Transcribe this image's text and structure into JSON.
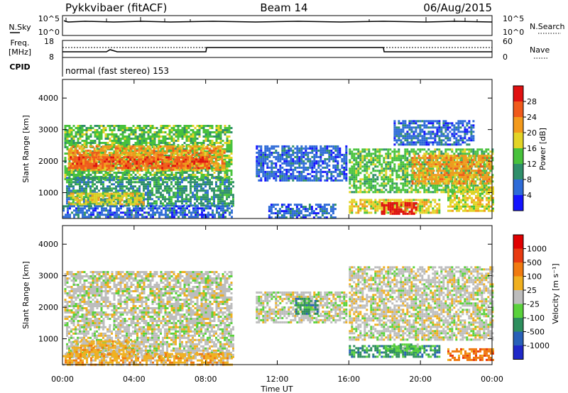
{
  "header": {
    "station": "Pykkvibaer (fitACF)",
    "beam": "Beam 14",
    "date": "06/Aug/2015"
  },
  "noise_panel": {
    "left_label": "N.Sky",
    "right_label": "N.Search",
    "left_ticks": [
      "10^5",
      "10^0"
    ],
    "right_ticks": [
      "10^5",
      "10^0"
    ]
  },
  "freq_panel": {
    "left_label_1": "Freq.",
    "left_label_2": "[MHz]",
    "right_label": "Nave",
    "left_ticks": [
      "18",
      "8"
    ],
    "right_ticks": [
      "60",
      "0"
    ]
  },
  "cpid": {
    "label": "CPID",
    "program": "normal (fast stereo) 153"
  },
  "chart_data": [
    {
      "type": "heatmap",
      "name": "power",
      "ylabel": "Slant Range [km]",
      "ylim": [
        180,
        4590
      ],
      "yticks": [
        1000,
        2000,
        3000,
        4000
      ],
      "xlim": [
        0,
        24
      ],
      "xtick_labels": [
        "00:00",
        "04:00",
        "08:00",
        "12:00",
        "16:00",
        "20:00",
        "00:00"
      ],
      "colorbar": {
        "label": "Power [dB]",
        "ticks": [
          "4",
          "8",
          "12",
          "16",
          "20",
          "24",
          "28"
        ],
        "colors": [
          "#1414ff",
          "#2e6bd8",
          "#2f8f6a",
          "#48c23c",
          "#e3d426",
          "#f39a1c",
          "#f05a1b",
          "#e01010"
        ]
      },
      "regions": [
        {
          "t0": 0.1,
          "t1": 9.5,
          "r0": 1450,
          "r1": 3150,
          "level": 3
        },
        {
          "t0": 0.3,
          "t1": 9.0,
          "r0": 1750,
          "r1": 2500,
          "level": 5
        },
        {
          "t0": 0.4,
          "t1": 8.2,
          "r0": 1800,
          "r1": 2150,
          "level": 6
        },
        {
          "t0": 0.2,
          "t1": 9.5,
          "r0": 600,
          "r1": 1500,
          "level": 2
        },
        {
          "t0": 0.3,
          "t1": 4.5,
          "r0": 650,
          "r1": 1000,
          "level": 4
        },
        {
          "t0": 0.0,
          "t1": 9.5,
          "r0": 200,
          "r1": 600,
          "level": 1
        },
        {
          "t0": 10.8,
          "t1": 15.8,
          "r0": 1400,
          "r1": 2500,
          "level": 1
        },
        {
          "t0": 11.5,
          "t1": 15.2,
          "r0": 200,
          "r1": 650,
          "level": 1
        },
        {
          "t0": 16.0,
          "t1": 24.0,
          "r0": 1000,
          "r1": 2400,
          "level": 3
        },
        {
          "t0": 19.5,
          "t1": 24.0,
          "r0": 1300,
          "r1": 2200,
          "level": 5
        },
        {
          "t0": 16.0,
          "t1": 21.0,
          "r0": 350,
          "r1": 800,
          "level": 4
        },
        {
          "t0": 17.8,
          "t1": 19.8,
          "r0": 300,
          "r1": 700,
          "level": 7
        },
        {
          "t0": 21.5,
          "t1": 24.0,
          "r0": 400,
          "r1": 1200,
          "level": 4
        },
        {
          "t0": 18.5,
          "t1": 23.0,
          "r0": 2500,
          "r1": 3300,
          "level": 1
        }
      ]
    },
    {
      "type": "heatmap",
      "name": "velocity",
      "ylabel": "Slant Range [km]",
      "ylim": [
        180,
        4590
      ],
      "yticks": [
        1000,
        2000,
        3000,
        4000
      ],
      "xlim": [
        0,
        24
      ],
      "xtick_labels": [
        "00:00",
        "04:00",
        "08:00",
        "12:00",
        "16:00",
        "20:00",
        "00:00"
      ],
      "xlabel": "Time UT",
      "colorbar": {
        "label": "Velocity [m s⁻¹]",
        "ticks": [
          "1000",
          "500",
          "100",
          "25",
          "-25",
          "-100",
          "-500",
          "-1000"
        ],
        "colors": [
          "#1f28c8",
          "#2860b8",
          "#2e8f5e",
          "#5ad23c",
          "#bdbdbd",
          "#f0b020",
          "#f07a10",
          "#e83a10",
          "#e00000"
        ]
      },
      "regions": [
        {
          "t0": 0.1,
          "t1": 9.5,
          "r0": 1400,
          "r1": 3150,
          "level": 4
        },
        {
          "t0": 0.2,
          "t1": 9.5,
          "r0": 450,
          "r1": 1400,
          "level": 4
        },
        {
          "t0": 0.5,
          "t1": 4.0,
          "r0": 500,
          "r1": 950,
          "level": 5
        },
        {
          "t0": 0.0,
          "t1": 9.5,
          "r0": 200,
          "r1": 550,
          "level": 5
        },
        {
          "t0": 10.8,
          "t1": 15.8,
          "r0": 1500,
          "r1": 2500,
          "level": 4
        },
        {
          "t0": 13.0,
          "t1": 14.3,
          "r0": 1800,
          "r1": 2300,
          "level": 2
        },
        {
          "t0": 16.0,
          "t1": 24.0,
          "r0": 1000,
          "r1": 3300,
          "level": 4
        },
        {
          "t0": 16.0,
          "t1": 21.0,
          "r0": 400,
          "r1": 800,
          "level": 2
        },
        {
          "t0": 18.0,
          "t1": 20.0,
          "r0": 600,
          "r1": 850,
          "level": 3
        },
        {
          "t0": 21.5,
          "t1": 24.0,
          "r0": 300,
          "r1": 700,
          "level": 6
        }
      ]
    }
  ]
}
